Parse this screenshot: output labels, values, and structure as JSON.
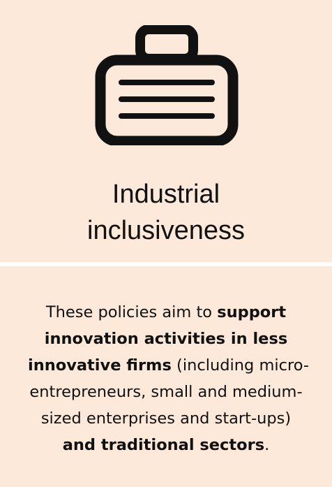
{
  "card": {
    "icon": "briefcase-icon",
    "title_lines": [
      "Industrial",
      "inclusiveness"
    ],
    "description_lines": [
      [
        {
          "text": "These policies aim to ",
          "bold": false
        },
        {
          "text": "support",
          "bold": true
        }
      ],
      [
        {
          "text": "innovation activities in less",
          "bold": true
        }
      ],
      [
        {
          "text": "innovative firms",
          "bold": true
        },
        {
          "text": " (including micro-",
          "bold": false
        }
      ],
      [
        {
          "text": "entrepreneurs, small and medium-",
          "bold": false
        }
      ],
      [
        {
          "text": "sized enterprises and start-ups)",
          "bold": false
        }
      ],
      [
        {
          "text": "and traditional sectors",
          "bold": true
        },
        {
          "text": ".",
          "bold": false
        }
      ]
    ]
  },
  "colors": {
    "panel_background": "#fde9da",
    "icon": "#111111",
    "text": "#111111",
    "separator": "#ffffff"
  }
}
